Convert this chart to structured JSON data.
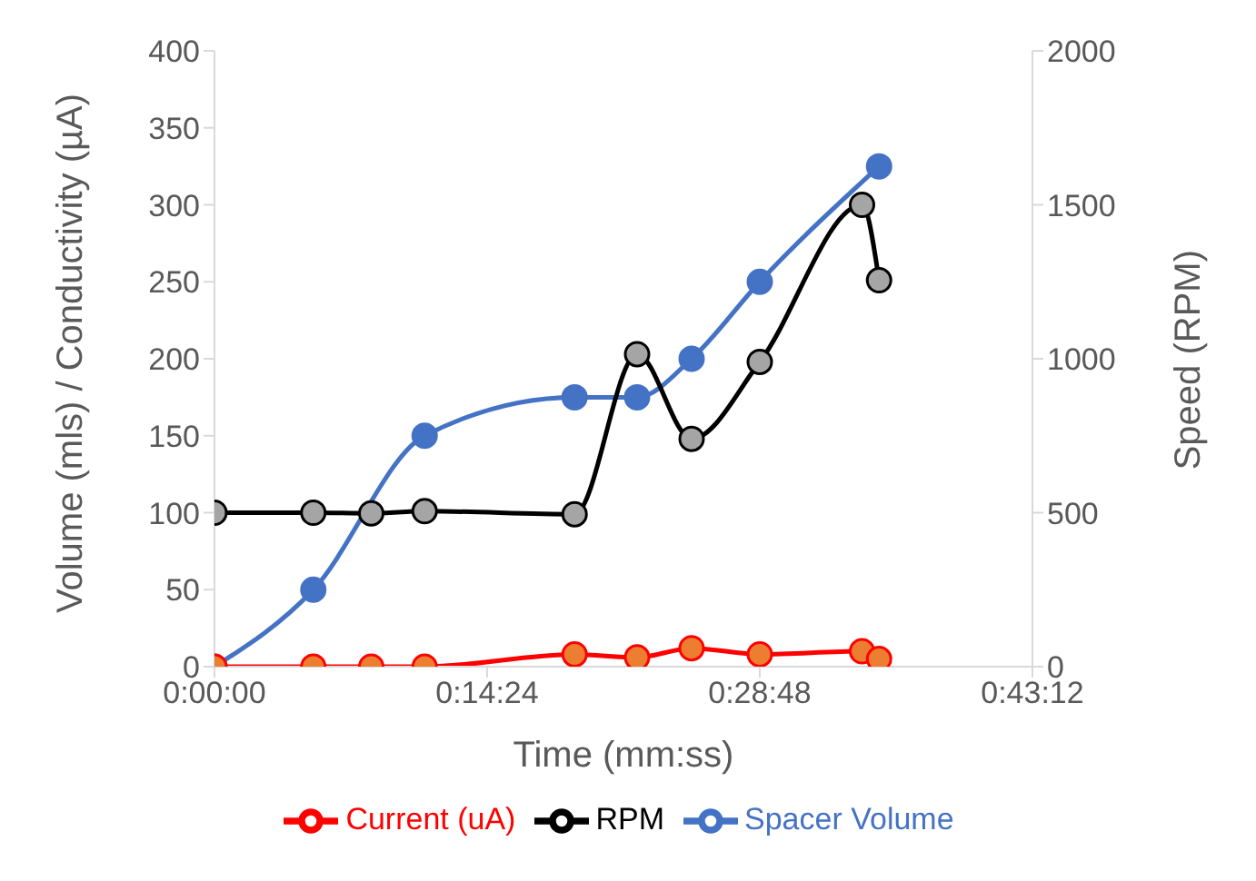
{
  "chart_data": {
    "type": "line",
    "xlabel": "Time (mm:ss)",
    "ylabel": "Volume (mls) / Conductivity (µA)",
    "y2label": "Speed (RPM)",
    "xlim": [
      0,
      0.72
    ],
    "xticks": [
      {
        "value": 0,
        "label": "0:00:00"
      },
      {
        "value": 0.24,
        "label": "0:14:24"
      },
      {
        "value": 0.48,
        "label": "0:28:48"
      },
      {
        "value": 0.72,
        "label": "0:43:12"
      }
    ],
    "ylim": [
      0,
      400
    ],
    "yticks": [
      0,
      50,
      100,
      150,
      200,
      250,
      300,
      350,
      400
    ],
    "y2lim": [
      0,
      2000
    ],
    "y2ticks": [
      0,
      500,
      1000,
      1500,
      2000
    ],
    "legend": "bottom",
    "marker": "circle",
    "line_style": "solid",
    "series": [
      {
        "name": "Spacer Volume",
        "color": "#4472c4",
        "x": [
          0,
          0.087,
          0.185,
          0.317,
          0.372,
          0.42,
          0.48,
          0.585
        ],
        "values": [
          0,
          50,
          150,
          175,
          175,
          200,
          250,
          325
        ]
      },
      {
        "name": "Current (uA)",
        "color": "#ff0000",
        "colors": [
          "#ed7d31",
          "#ed7d31",
          "#ed7d31",
          "#ed7d31",
          "#ed7d31",
          "#ed7d31",
          "#ed7d31",
          "#ed7d31",
          "#ed7d31",
          "#ed7d31"
        ],
        "x": [
          0,
          0.087,
          0.138,
          0.185,
          0.317,
          0.372,
          0.42,
          0.48,
          0.57,
          0.585
        ],
        "values": [
          0,
          0,
          0,
          0,
          8,
          6,
          12,
          8,
          10,
          5
        ]
      },
      {
        "name": "RPM",
        "color": "#000000",
        "colors": [
          "#a5a5a5",
          "#a5a5a5",
          "#a5a5a5",
          "#a5a5a5",
          "#a5a5a5",
          "#a5a5a5",
          "#a5a5a5",
          "#a5a5a5",
          "#a5a5a5",
          "#a5a5a5"
        ],
        "axis": "y2",
        "x": [
          0,
          0.087,
          0.138,
          0.185,
          0.317,
          0.372,
          0.42,
          0.48,
          0.57,
          0.585
        ],
        "values": [
          500,
          500,
          498,
          505,
          495,
          1015,
          740,
          990,
          1500,
          1255
        ]
      }
    ]
  }
}
